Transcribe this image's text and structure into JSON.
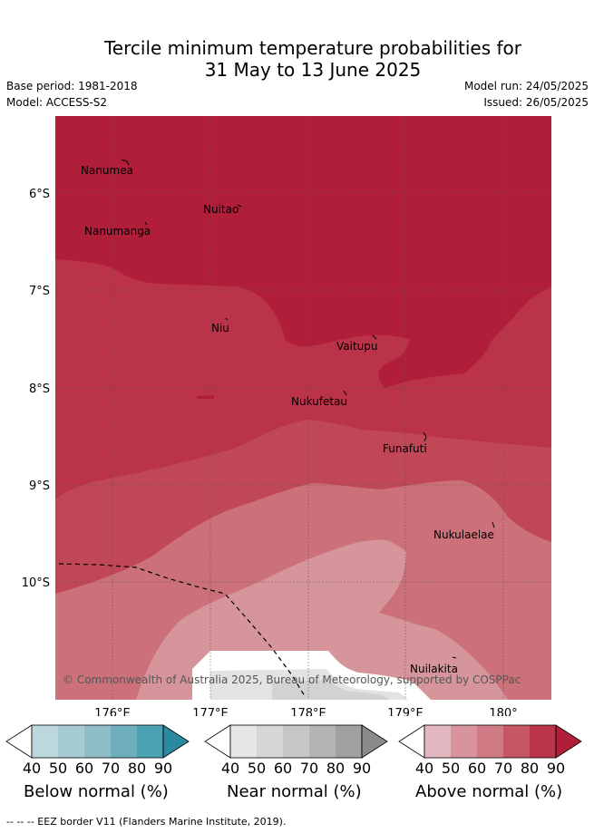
{
  "title_line1": "Tercile minimum temperature probabilities for",
  "title_line2": "31 May to 13 June 2025",
  "base_period": "Base period: 1981-2018",
  "model": "Model: ACCESS-S2",
  "model_run": "Model run: 24/05/2025",
  "issued": "Issued: 26/05/2025",
  "lat_labels": [
    "6°S",
    "7°S",
    "8°S",
    "9°S",
    "10°S"
  ],
  "lon_labels": [
    "176°E",
    "177°E",
    "178°E",
    "179°E",
    "180°"
  ],
  "places": [
    "Nanumea",
    "Nuitao",
    "Nanumanga",
    "Niu",
    "Vaitupu",
    "Nukufetau",
    "Funafuti",
    "Nukulaelae",
    "Nuilakita"
  ],
  "copyright": "© Commonwealth of Australia 2025, Bureau of Meteorology, supported by COSPPac",
  "colorbars": [
    {
      "label": "Below normal (%)",
      "ticks": [
        "40",
        "50",
        "60",
        "70",
        "80",
        "90"
      ],
      "colors": [
        "#ffffff",
        "#bcd7dd",
        "#a6cbd2",
        "#8ebcc7",
        "#6faebd",
        "#4ba2b3",
        "#2a8aa0"
      ]
    },
    {
      "label": "Near normal (%)",
      "ticks": [
        "40",
        "50",
        "60",
        "70",
        "80",
        "90"
      ],
      "colors": [
        "#ffffff",
        "#e6e6e6",
        "#d6d6d6",
        "#c6c6c6",
        "#b4b4b4",
        "#a0a0a0",
        "#8a8a8a"
      ]
    },
    {
      "label": "Above normal (%)",
      "ticks": [
        "40",
        "50",
        "60",
        "70",
        "80",
        "90"
      ],
      "colors": [
        "#ffffff",
        "#e2b7bf",
        "#d8949c",
        "#cf7a84",
        "#c65663",
        "#bb3349",
        "#b01e3a"
      ]
    }
  ],
  "footer": "--  --  -- EEZ border V11 (Flanders Marine Institute, 2019)."
}
